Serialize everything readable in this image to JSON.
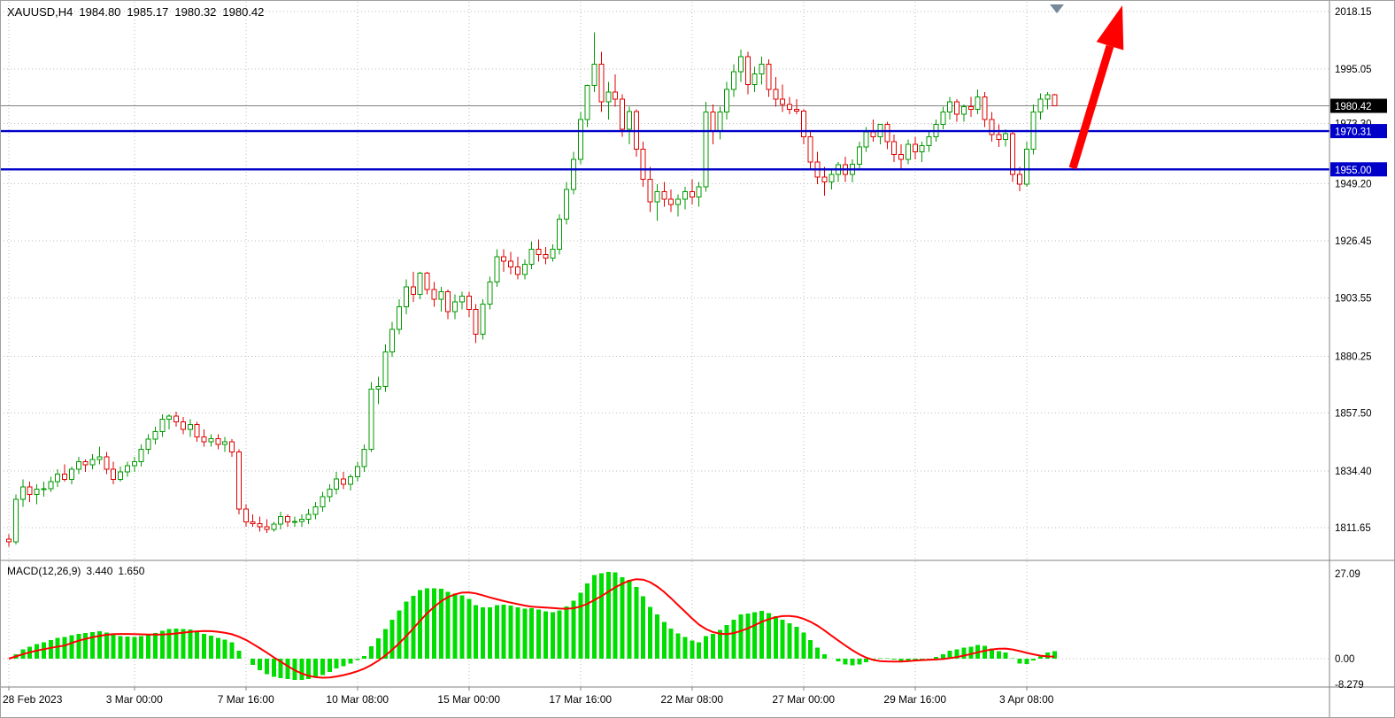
{
  "window": {
    "title": {
      "symbol": "XAUUSD,H4",
      "open": "1984.80",
      "high": "1985.17",
      "low": "1980.32",
      "close": "1980.42"
    }
  },
  "price_axis": {
    "labels": [
      "2018.15",
      "1995.05",
      "1973.30",
      "1949.20",
      "1926.45",
      "1903.55",
      "1880.25",
      "1857.50",
      "1834.40",
      "1811.65"
    ],
    "current_price_badge": "1980.42"
  },
  "time_axis": {
    "labels": [
      {
        "text": "28 Feb 2023",
        "bar": 0
      },
      {
        "text": "3 Mar 00:00",
        "bar": 18
      },
      {
        "text": "7 Mar 16:00",
        "bar": 34
      },
      {
        "text": "10 Mar 08:00",
        "bar": 50
      },
      {
        "text": "15 Mar 00:00",
        "bar": 66
      },
      {
        "text": "17 Mar 16:00",
        "bar": 82
      },
      {
        "text": "22 Mar 08:00",
        "bar": 98
      },
      {
        "text": "27 Mar 00:00",
        "bar": 114
      },
      {
        "text": "29 Mar 16:00",
        "bar": 130
      },
      {
        "text": "3 Apr 08:00",
        "bar": 146
      }
    ]
  },
  "levels": [
    {
      "label": "1970.31",
      "price": 1970.31,
      "color": "#0000C8"
    },
    {
      "label": "1955.00",
      "price": 1955.0,
      "color": "#0000C8"
    }
  ],
  "indicator": {
    "label": "MACD(12,26,9)",
    "value": "3.440",
    "signal_value": "1.650",
    "axis_labels": [
      "27.09",
      "0.00",
      "-8.279"
    ]
  },
  "annotations": {
    "trend_arrow": {
      "direction": "up",
      "color": "#FF0000"
    },
    "shift_marker": {
      "color": "#778899"
    }
  },
  "colors": {
    "background": "#FFFFFF",
    "grid": "#BEBEBE",
    "bull": "#009900",
    "bear": "#DD0000",
    "candle_fill": "#FFFFFF",
    "bid_line": "#808080",
    "macd_histogram": "#00DD00",
    "macd_signal": "#FF0000",
    "axis_text": "#000000",
    "separator": "#808080",
    "badge_current": "#000000"
  },
  "chart_data": {
    "type": "candlestick",
    "symbol": "XAUUSD",
    "timeframe": "H4",
    "title": "XAUUSD,H4 1984.80 1985.17 1980.32 1980.42",
    "ohlc_format": [
      "open",
      "high",
      "low",
      "close"
    ],
    "y_axis_ticks": [
      2018.15,
      1995.05,
      1973.3,
      1949.2,
      1926.45,
      1903.55,
      1880.25,
      1857.5,
      1834.4,
      1811.65
    ],
    "x_axis_ticks": [
      "28 Feb 2023",
      "3 Mar 00:00",
      "7 Mar 16:00",
      "10 Mar 08:00",
      "15 Mar 00:00",
      "17 Mar 16:00",
      "22 Mar 08:00",
      "27 Mar 00:00",
      "29 Mar 16:00",
      "3 Apr 08:00"
    ],
    "overlays": {
      "horizontal_support_resistance_lines": [
        1970.31,
        1955.0
      ],
      "bid_price": 1980.42
    },
    "indicator_pane": {
      "type": "macd_histogram_with_signal_line",
      "params": [
        12,
        26,
        9
      ],
      "current_macd": 3.44,
      "current_signal": 1.65,
      "y_ticks": [
        27.09,
        0.0,
        -8.279
      ],
      "note": "histogram and signal derived from candle closes"
    },
    "candles": [
      [
        1807,
        1809,
        1804,
        1806
      ],
      [
        1806,
        1825,
        1805,
        1823
      ],
      [
        1823,
        1831,
        1820,
        1828
      ],
      [
        1828,
        1830,
        1822,
        1825
      ],
      [
        1825,
        1829,
        1821,
        1827
      ],
      [
        1827,
        1830,
        1824,
        1827.3
      ],
      [
        1827.3,
        1832,
        1826,
        1830
      ],
      [
        1830,
        1835,
        1828,
        1833
      ],
      [
        1833,
        1837,
        1830,
        1831
      ],
      [
        1831,
        1836,
        1829,
        1835
      ],
      [
        1835,
        1840,
        1833,
        1838
      ],
      [
        1838,
        1839,
        1834,
        1836.8
      ],
      [
        1836.8,
        1841,
        1835,
        1839
      ],
      [
        1839,
        1844,
        1837,
        1840
      ],
      [
        1840,
        1842,
        1833,
        1835
      ],
      [
        1835,
        1838,
        1829,
        1831
      ],
      [
        1831,
        1836,
        1830,
        1834
      ],
      [
        1834,
        1838,
        1832,
        1836.5
      ],
      [
        1836.5,
        1840,
        1834,
        1838
      ],
      [
        1838,
        1845,
        1836,
        1843
      ],
      [
        1843,
        1849,
        1841,
        1847
      ],
      [
        1847,
        1852,
        1845,
        1850
      ],
      [
        1850,
        1857,
        1848,
        1855
      ],
      [
        1855,
        1857,
        1851,
        1856.3
      ],
      [
        1856.3,
        1858,
        1852,
        1854
      ],
      [
        1854,
        1856,
        1849,
        1851
      ],
      [
        1851,
        1855,
        1848,
        1853
      ],
      [
        1853,
        1854,
        1846,
        1848
      ],
      [
        1848,
        1851,
        1844,
        1846
      ],
      [
        1846,
        1849,
        1844,
        1847.2
      ],
      [
        1847.2,
        1849,
        1843,
        1845
      ],
      [
        1845,
        1848,
        1842,
        1846
      ],
      [
        1846,
        1847,
        1840,
        1842
      ],
      [
        1842,
        1843,
        1817,
        1819
      ],
      [
        1819,
        1821,
        1812,
        1814
      ],
      [
        1814,
        1817,
        1812,
        1813.3
      ],
      [
        1813.3,
        1816,
        1810,
        1812
      ],
      [
        1812,
        1815,
        1809.5,
        1811
      ],
      [
        1811,
        1814,
        1810,
        1813
      ],
      [
        1813,
        1818,
        1811,
        1816
      ],
      [
        1816,
        1817,
        1812,
        1814
      ],
      [
        1814,
        1816,
        1812,
        1814.2
      ],
      [
        1814.2,
        1817,
        1812,
        1815
      ],
      [
        1815,
        1819,
        1813,
        1817
      ],
      [
        1817,
        1822,
        1815,
        1820
      ],
      [
        1820,
        1826,
        1818,
        1824
      ],
      [
        1824,
        1829,
        1822,
        1827
      ],
      [
        1827,
        1834,
        1825,
        1831.2
      ],
      [
        1831.2,
        1834,
        1827,
        1829
      ],
      [
        1829,
        1833,
        1826.5,
        1832
      ],
      [
        1832,
        1838,
        1830,
        1836
      ],
      [
        1836,
        1845,
        1834,
        1843
      ],
      [
        1843,
        1870,
        1842,
        1867
      ],
      [
        1867,
        1872,
        1861,
        1868.2
      ],
      [
        1868.2,
        1885,
        1866,
        1882
      ],
      [
        1882,
        1894,
        1880,
        1891
      ],
      [
        1891,
        1903,
        1889,
        1900
      ],
      [
        1900,
        1911,
        1897,
        1908
      ],
      [
        1908,
        1914,
        1902,
        1905
      ],
      [
        1905,
        1914,
        1903,
        1913.4
      ],
      [
        1913.4,
        1914,
        1905,
        1907
      ],
      [
        1907,
        1910,
        1900,
        1903
      ],
      [
        1903,
        1908,
        1898,
        1906
      ],
      [
        1906,
        1907,
        1895,
        1898
      ],
      [
        1898,
        1905,
        1895,
        1902
      ],
      [
        1902,
        1906,
        1899,
        1904.3
      ],
      [
        1904.3,
        1906,
        1896,
        1899
      ],
      [
        1899,
        1901,
        1885.5,
        1889
      ],
      [
        1889,
        1903,
        1887,
        1901
      ],
      [
        1901,
        1912,
        1899,
        1910
      ],
      [
        1910,
        1923,
        1908,
        1920
      ],
      [
        1920,
        1923,
        1914,
        1918.3
      ],
      [
        1918.3,
        1922,
        1913,
        1916
      ],
      [
        1916,
        1920,
        1911,
        1913
      ],
      [
        1913,
        1919,
        1911,
        1917
      ],
      [
        1917,
        1926,
        1915,
        1923
      ],
      [
        1923,
        1927,
        1918,
        1921
      ],
      [
        1921,
        1924,
        1917,
        1919.5
      ],
      [
        1919.5,
        1925,
        1918,
        1923
      ],
      [
        1923,
        1937,
        1921,
        1935
      ],
      [
        1935,
        1950,
        1933,
        1947
      ],
      [
        1947,
        1962,
        1945,
        1959
      ],
      [
        1959,
        1978,
        1957,
        1975
      ],
      [
        1975,
        1989,
        1972,
        1988.5
      ],
      [
        1988.5,
        2009.8,
        1986,
        1997
      ],
      [
        1997,
        2002,
        1978,
        1982
      ],
      [
        1982,
        1990,
        1975,
        1986
      ],
      [
        1986,
        1993,
        1980,
        1983
      ],
      [
        1983,
        1985,
        1968,
        1971
      ],
      [
        1971,
        1980,
        1965,
        1978.2
      ],
      [
        1978.2,
        1979,
        1960,
        1963
      ],
      [
        1963,
        1966,
        1948,
        1951
      ],
      [
        1951,
        1956,
        1938,
        1942
      ],
      [
        1942,
        1949,
        1934.3,
        1946
      ],
      [
        1946,
        1950,
        1940,
        1943
      ],
      [
        1943,
        1947,
        1938,
        1940.9
      ],
      [
        1940.9,
        1945,
        1936.2,
        1943
      ],
      [
        1943,
        1948,
        1939,
        1946
      ],
      [
        1946,
        1951,
        1941,
        1944
      ],
      [
        1944,
        1950,
        1940,
        1948
      ],
      [
        1948,
        1982,
        1946,
        1978
      ],
      [
        1978,
        1981,
        1965,
        1970.1
      ],
      [
        1970.1,
        1980,
        1967,
        1978
      ],
      [
        1978,
        1990,
        1975,
        1987
      ],
      [
        1987,
        1997,
        1984,
        1994
      ],
      [
        1994,
        2003,
        1990,
        2000
      ],
      [
        2000,
        2002,
        1985,
        1989
      ],
      [
        1989,
        1996,
        1986,
        1993.2
      ],
      [
        1993.2,
        2000,
        1989,
        1997
      ],
      [
        1997,
        1999,
        1984,
        1987
      ],
      [
        1987,
        1992,
        1980,
        1983
      ],
      [
        1983,
        1989,
        1978,
        1981
      ],
      [
        1981,
        1984,
        1977,
        1979
      ],
      [
        1979,
        1983,
        1977,
        1978.3
      ],
      [
        1978.3,
        1979,
        1965,
        1968
      ],
      [
        1968,
        1970,
        1955,
        1958
      ],
      [
        1958,
        1962,
        1949,
        1952
      ],
      [
        1952,
        1956,
        1944.5,
        1950
      ],
      [
        1950,
        1955,
        1947,
        1953
      ],
      [
        1953,
        1958,
        1950,
        1956.8
      ],
      [
        1956.8,
        1960,
        1950,
        1953
      ],
      [
        1953,
        1959,
        1949.8,
        1957
      ],
      [
        1957,
        1966,
        1955,
        1964
      ],
      [
        1964,
        1972,
        1962,
        1970
      ],
      [
        1970,
        1975,
        1966,
        1968
      ],
      [
        1968,
        1973,
        1965,
        1972.9
      ],
      [
        1972.9,
        1974,
        1963,
        1966
      ],
      [
        1966,
        1969,
        1958,
        1961
      ],
      [
        1961,
        1965,
        1955.3,
        1959
      ],
      [
        1959,
        1967,
        1957,
        1965
      ],
      [
        1965,
        1968,
        1959,
        1962
      ],
      [
        1962,
        1966,
        1958,
        1964.4
      ],
      [
        1964.4,
        1970,
        1962,
        1968
      ],
      [
        1968,
        1975,
        1966,
        1973
      ],
      [
        1973,
        1980,
        1971,
        1978
      ],
      [
        1978,
        1984,
        1975,
        1982
      ],
      [
        1982,
        1983,
        1974,
        1977
      ],
      [
        1977,
        1981,
        1974,
        1980.1
      ],
      [
        1980.1,
        1984,
        1976,
        1979
      ],
      [
        1979,
        1987,
        1977,
        1984
      ],
      [
        1984,
        1986,
        1972,
        1975
      ],
      [
        1975,
        1978,
        1966,
        1969
      ],
      [
        1969,
        1973,
        1964,
        1967
      ],
      [
        1967,
        1971,
        1964.2,
        1969.3
      ],
      [
        1969.3,
        1970,
        1950,
        1953
      ],
      [
        1953,
        1956,
        1946.3,
        1949
      ],
      [
        1949,
        1966,
        1948,
        1963
      ],
      [
        1963,
        1981,
        1961,
        1978
      ],
      [
        1978,
        1985.3,
        1975,
        1983
      ],
      [
        1983,
        1986,
        1979,
        1984.8
      ],
      [
        1984.8,
        1985.17,
        1980.32,
        1980.42
      ]
    ]
  }
}
